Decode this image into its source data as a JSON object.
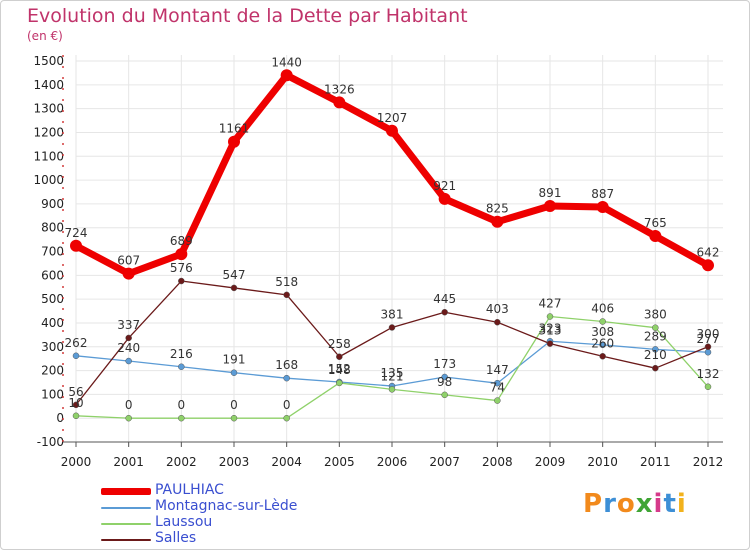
{
  "title": "Evolution du Montant de la Dette par Habitant",
  "subtitle": "(en €)",
  "brand": {
    "text": "Proxiti",
    "colors": [
      "#f28a1c",
      "#3d8fd6",
      "#f28a1c",
      "#3fa535",
      "#d63a8a",
      "#3d8fd6",
      "#f2b21c"
    ]
  },
  "colors": {
    "title": "#c0336a",
    "legend_text": "#3a4fd0",
    "grid": "#e6e6e6",
    "axis": "#555555"
  },
  "chart_data": {
    "type": "line",
    "title": "Evolution du Montant de la Dette par Habitant",
    "subtitle": "(en €)",
    "xlabel": "",
    "ylabel": "",
    "ylim": [
      -100,
      1500
    ],
    "yticks": [
      -100,
      0,
      100,
      200,
      300,
      400,
      500,
      600,
      700,
      800,
      900,
      1000,
      1100,
      1200,
      1300,
      1400,
      1500
    ],
    "x": [
      "2000",
      "2001",
      "2002",
      "2003",
      "2004",
      "2005",
      "2006",
      "2007",
      "2008",
      "2009",
      "2010",
      "2011",
      "2012"
    ],
    "grid": true,
    "legend_position": "bottom-left",
    "series": [
      {
        "name": "PAULHIAC",
        "color": "#ee0000",
        "width": 7,
        "marker": 6,
        "values": [
          724,
          607,
          689,
          1161,
          1440,
          1326,
          1207,
          921,
          825,
          891,
          887,
          765,
          642
        ],
        "labels": [
          "724",
          "607",
          "689",
          "1161",
          "1440",
          "1326",
          "1207",
          "921",
          "825",
          "891",
          "887",
          "765",
          "642"
        ]
      },
      {
        "name": "Montagnac-sur-Lède",
        "color": "#5b9bd5",
        "width": 1.3,
        "marker": 3,
        "values": [
          262,
          240,
          216,
          191,
          168,
          152,
          135,
          173,
          147,
          323,
          308,
          289,
          277
        ],
        "labels": [
          "262",
          "240",
          "216",
          "191",
          "168",
          "152",
          "135",
          "173",
          "147",
          "323",
          "308",
          "289",
          "277"
        ]
      },
      {
        "name": "Laussou",
        "color": "#8fd16a",
        "width": 1.3,
        "marker": 3,
        "values": [
          10,
          0,
          0,
          0,
          0,
          148,
          121,
          98,
          74,
          427,
          406,
          380,
          132
        ],
        "labels": [
          "10",
          "0",
          "0",
          "0",
          "0",
          "148",
          "121",
          "98",
          "74",
          "427",
          "406",
          "380",
          "132"
        ]
      },
      {
        "name": "Salles",
        "color": "#6b1a1a",
        "width": 1.3,
        "marker": 3,
        "values": [
          56,
          337,
          576,
          547,
          518,
          258,
          381,
          445,
          403,
          313,
          260,
          210,
          300
        ],
        "labels": [
          "56",
          "337",
          "576",
          "547",
          "518",
          "258",
          "381",
          "445",
          "403",
          "313",
          "260",
          "210",
          "300"
        ]
      }
    ]
  }
}
